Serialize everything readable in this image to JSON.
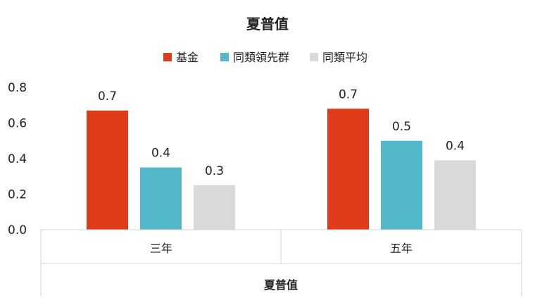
{
  "chart_data": {
    "type": "bar",
    "title": "夏普值",
    "xlabel": "夏普值",
    "ylabel": "",
    "categories": [
      "三年",
      "五年"
    ],
    "series": [
      {
        "name": "基金",
        "values": [
          0.67,
          0.68
        ],
        "labels": [
          "0.7",
          "0.7"
        ],
        "color": "#E03C1B"
      },
      {
        "name": "同類領先群",
        "values": [
          0.35,
          0.5
        ],
        "labels": [
          "0.4",
          "0.5"
        ],
        "color": "#53B8C9"
      },
      {
        "name": "同類平均",
        "values": [
          0.25,
          0.39
        ],
        "labels": [
          "0.3",
          "0.4"
        ],
        "color": "#D9D9D9"
      }
    ],
    "ylim": [
      0,
      0.8
    ],
    "yticks": [
      "0.0",
      "0.2",
      "0.4",
      "0.6",
      "0.8"
    ],
    "grid": false,
    "legend": "top"
  }
}
